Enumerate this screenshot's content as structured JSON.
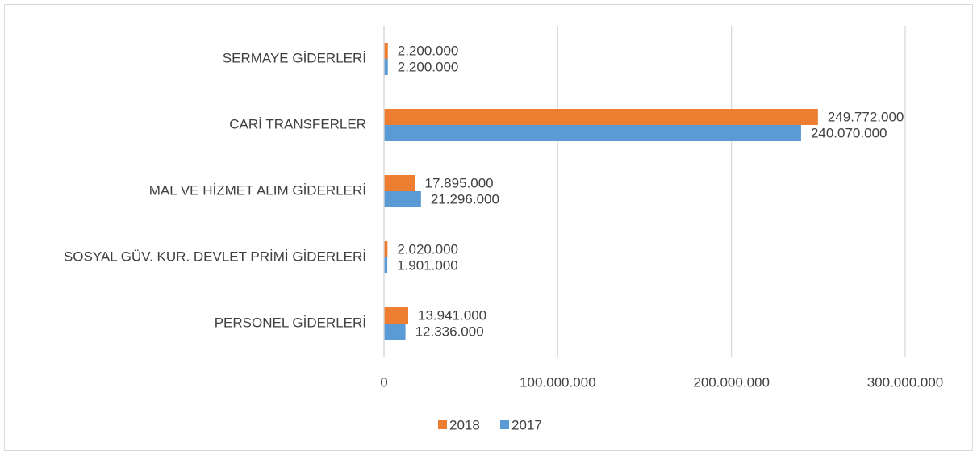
{
  "chart_data": {
    "type": "hbar",
    "categories": [
      "SERMAYE GİDERLERİ",
      "CARİ TRANSFERLER",
      "MAL VE HİZMET ALIM GİDERLERİ",
      "SOSYAL GÜV. KUR. DEVLET PRİMİ GİDERLERİ",
      "PERSONEL GİDERLERİ"
    ],
    "series": [
      {
        "name": "2018",
        "color": "#ed7d31",
        "values": [
          2200000,
          249772000,
          17895000,
          2020000,
          13941000
        ],
        "value_labels": [
          "2.200.000",
          "249.772.000",
          "17.895.000",
          "2.020.000",
          "13.941.000"
        ]
      },
      {
        "name": "2017",
        "color": "#5b9bd5",
        "values": [
          2200000,
          240070000,
          21296000,
          1901000,
          12336000
        ],
        "value_labels": [
          "2.200.000",
          "240.070.000",
          "21.296.000",
          "1.901.000",
          "12.336.000"
        ]
      }
    ],
    "xlim": [
      0,
      300000000
    ],
    "xticks": [
      0,
      {
        "value": 100000000,
        "label": "100.000.000"
      },
      {
        "value": 200000000,
        "label": "200.000.000"
      },
      {
        "value": 300000000,
        "label": "300.000.000"
      }
    ],
    "grid": true,
    "legend": "bottom"
  }
}
